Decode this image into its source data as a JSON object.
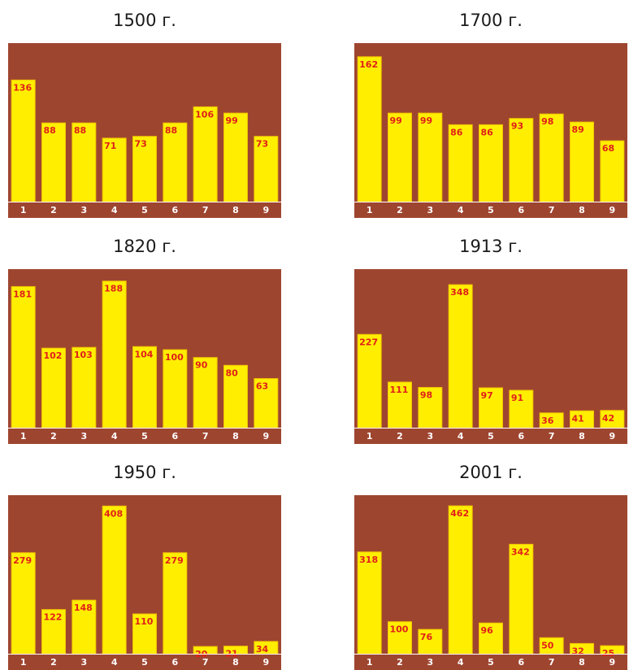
{
  "colors": {
    "background": "#9e4530",
    "bar": "#ffee00",
    "bar_edge": "#f3c300",
    "value_label": "#e0201a",
    "tick_label": "#ffffff"
  },
  "chart_data": [
    {
      "type": "bar",
      "title": "1500 г.",
      "categories": [
        "1",
        "2",
        "3",
        "4",
        "5",
        "6",
        "7",
        "8",
        "9"
      ],
      "values": [
        136,
        88,
        88,
        71,
        73,
        88,
        106,
        99,
        73
      ],
      "ylim": [
        0,
        170
      ]
    },
    {
      "type": "bar",
      "title": "1700 г.",
      "categories": [
        "1",
        "2",
        "3",
        "4",
        "5",
        "6",
        "7",
        "8",
        "9"
      ],
      "values": [
        162,
        99,
        99,
        86,
        86,
        93,
        98,
        89,
        68
      ],
      "ylim": [
        0,
        170
      ]
    },
    {
      "type": "bar",
      "title": "1820 г.",
      "categories": [
        "1",
        "2",
        "3",
        "4",
        "5",
        "6",
        "7",
        "8",
        "9"
      ],
      "values": [
        181,
        102,
        103,
        188,
        104,
        100,
        90,
        80,
        63
      ],
      "ylim": [
        0,
        195
      ]
    },
    {
      "type": "bar",
      "title": "1913 г.",
      "categories": [
        "1",
        "2",
        "3",
        "4",
        "5",
        "6",
        "7",
        "8",
        "9"
      ],
      "values": [
        227,
        111,
        98,
        348,
        97,
        91,
        36,
        41,
        42
      ],
      "ylim": [
        0,
        370
      ]
    },
    {
      "type": "bar",
      "title": "1950 г.",
      "categories": [
        "1",
        "2",
        "3",
        "4",
        "5",
        "6",
        "7",
        "8",
        "9"
      ],
      "values": [
        279,
        122,
        148,
        408,
        110,
        279,
        20,
        21,
        34
      ],
      "ylim": [
        0,
        420
      ]
    },
    {
      "type": "bar",
      "title": "2001 г.",
      "categories": [
        "1",
        "2",
        "3",
        "4",
        "5",
        "6",
        "7",
        "8",
        "9"
      ],
      "values": [
        318,
        100,
        76,
        462,
        96,
        342,
        50,
        32,
        25
      ],
      "ylim": [
        0,
        475
      ]
    }
  ]
}
